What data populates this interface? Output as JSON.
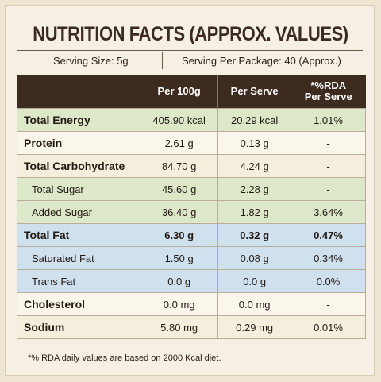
{
  "title": "NUTRITION FACTS (APPROX. VALUES)",
  "serving_size": "Serving Size: 5g",
  "serving_per_package": "Serving Per Package: 40 (Approx.)",
  "table": {
    "header": [
      "Per 100g",
      "Per Serve",
      "*%RDA Per Serve"
    ],
    "rows": [
      [
        "Total Energy",
        "405.90 kcal",
        "20.29 kcal",
        "1.01%"
      ],
      [
        "Protein",
        "2.61 g",
        "0.13 g",
        "-"
      ],
      [
        "Total Carbohydrate",
        "84.70 g",
        "4.24 g",
        "-"
      ],
      [
        "Total Sugar",
        "45.60 g",
        "2.28 g",
        "-"
      ],
      [
        "Added Sugar",
        "36.40 g",
        "1.82 g",
        "3.64%"
      ],
      [
        "Total Fat",
        "6.30 g",
        "0.32 g",
        "0.47%"
      ],
      [
        "Saturated Fat",
        "1.50 g",
        "0.08 g",
        "0.34%"
      ],
      [
        "Trans Fat",
        "0.0 g",
        "0.0 g",
        "0.0%"
      ],
      [
        "Cholesterol",
        "0.0 mg",
        "0.0 mg",
        "-"
      ],
      [
        "Sodium",
        "5.80 mg",
        "0.29 mg",
        "0.01%"
      ]
    ]
  },
  "footnote": "*% RDA daily values are based on 2000 Kcal diet."
}
